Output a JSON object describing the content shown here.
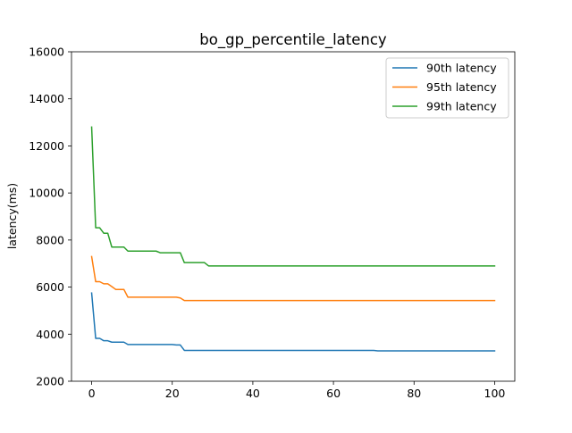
{
  "chart_data": {
    "type": "line",
    "title": "bo_gp_percentile_latency",
    "xlabel": "",
    "ylabel": "latency(ms)",
    "xlim": [
      -5,
      105
    ],
    "ylim": [
      2000,
      16000
    ],
    "xticks": [
      0,
      20,
      40,
      60,
      80,
      100
    ],
    "yticks": [
      2000,
      4000,
      6000,
      8000,
      10000,
      12000,
      14000,
      16000
    ],
    "grid": false,
    "legend_position": "top-right",
    "series": [
      {
        "name": "90th latency",
        "color": "#1f77b4",
        "x": [
          0,
          1,
          2,
          3,
          4,
          5,
          6,
          7,
          8,
          9,
          10,
          20,
          21,
          22,
          23,
          30,
          70,
          71,
          100
        ],
        "y": [
          5750,
          3820,
          3820,
          3720,
          3720,
          3660,
          3660,
          3660,
          3660,
          3560,
          3560,
          3560,
          3540,
          3540,
          3310,
          3310,
          3310,
          3290,
          3290
        ]
      },
      {
        "name": "95th latency",
        "color": "#ff7f0e",
        "x": [
          0,
          1,
          2,
          3,
          4,
          5,
          6,
          7,
          8,
          9,
          10,
          20,
          21,
          22,
          23,
          100
        ],
        "y": [
          7300,
          6230,
          6230,
          6140,
          6140,
          6020,
          5900,
          5900,
          5900,
          5570,
          5570,
          5570,
          5570,
          5540,
          5430,
          5430
        ]
      },
      {
        "name": "99th latency",
        "color": "#2ca02c",
        "x": [
          0,
          1,
          2,
          3,
          4,
          5,
          6,
          7,
          8,
          9,
          10,
          16,
          17,
          20,
          21,
          22,
          23,
          28,
          29,
          100
        ],
        "y": [
          12800,
          8520,
          8520,
          8290,
          8290,
          7700,
          7700,
          7700,
          7700,
          7530,
          7530,
          7530,
          7460,
          7460,
          7460,
          7460,
          7040,
          7040,
          6900,
          6900
        ]
      }
    ]
  }
}
